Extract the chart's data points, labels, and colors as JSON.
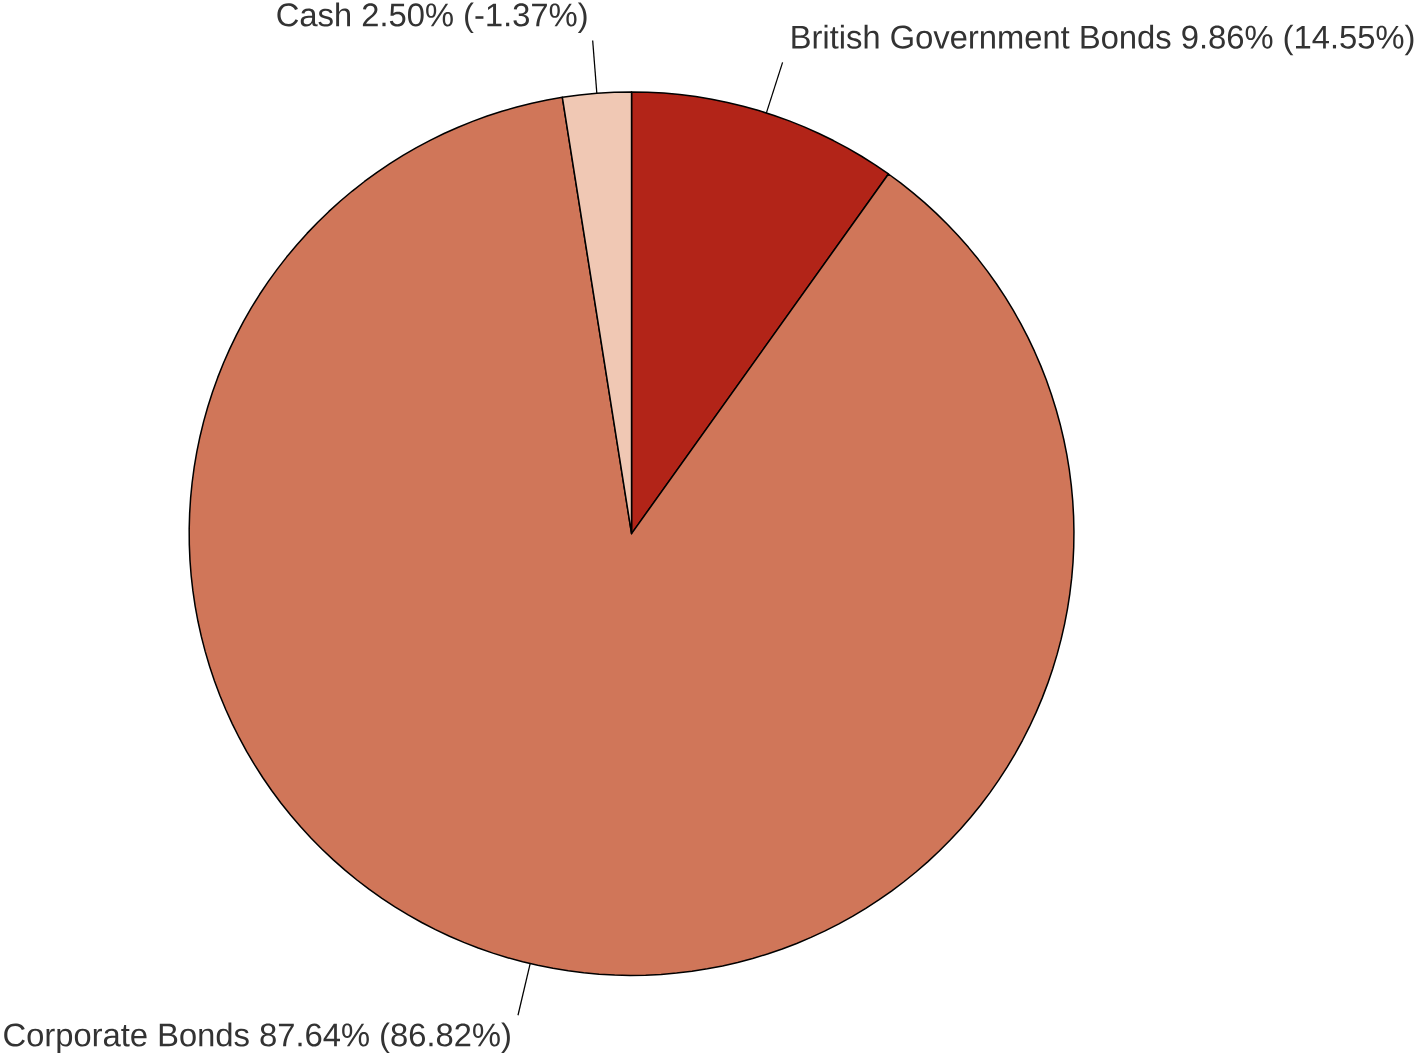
{
  "chart_data": {
    "type": "pie",
    "categories": [
      "British Government Bonds",
      "Corporate Bonds",
      "Cash"
    ],
    "values": [
      9.86,
      87.64,
      2.5
    ],
    "value_labels": [
      "9.86% (14.55%)",
      "87.64% (86.82%)",
      "2.50% (-1.37%)"
    ],
    "colors": [
      "#b22418",
      "#d07659",
      "#f0c8b4"
    ]
  }
}
